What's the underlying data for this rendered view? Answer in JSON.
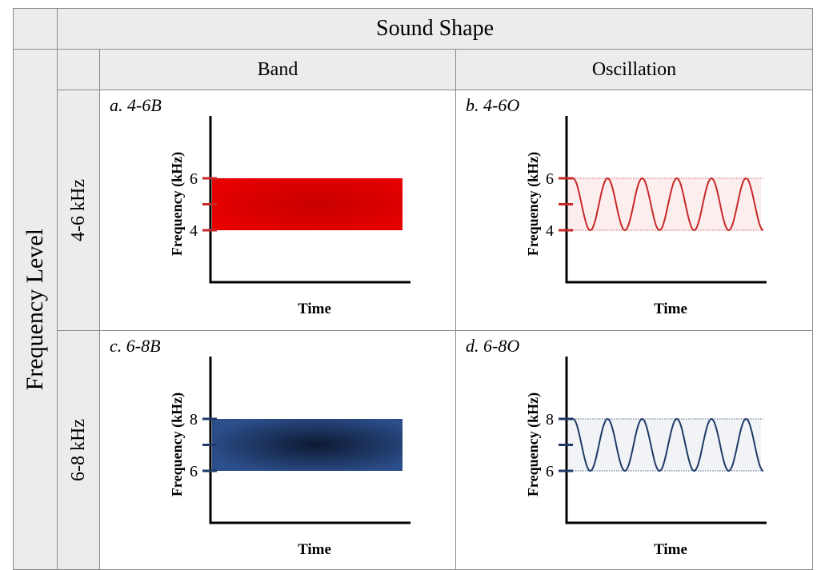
{
  "title": "Sound Shape",
  "row_axis_label": "Frequency Level",
  "columns": [
    "Band",
    "Oscillation"
  ],
  "rows": [
    "4-6 kHz",
    "6-8 kHz"
  ],
  "panels": [
    {
      "label": "a. 4-6B",
      "shape": "band",
      "ylabel": "Frequency (kHz)",
      "xlabel": "Time",
      "low": 4,
      "high": 6,
      "color": "#e60000",
      "tick_color": "#c62828"
    },
    {
      "label": "b. 4-6O",
      "shape": "oscillation",
      "ylabel": "Frequency (kHz)",
      "xlabel": "Time",
      "low": 4,
      "high": 6,
      "color": "#c62828",
      "tick_color": "#c62828",
      "fill": "#fdeeee"
    },
    {
      "label": "c. 6-8B",
      "shape": "band",
      "ylabel": "Frequency (kHz)",
      "xlabel": "Time",
      "low": 6,
      "high": 8,
      "color": "#2c4f8c",
      "tick_color": "#1f3a68"
    },
    {
      "label": "d. 6-8O",
      "shape": "oscillation",
      "ylabel": "Frequency (kHz)",
      "xlabel": "Time",
      "low": 6,
      "high": 8,
      "color": "#1f3a68",
      "tick_color": "#1f3a68",
      "fill": "#f1f3f7"
    }
  ]
}
